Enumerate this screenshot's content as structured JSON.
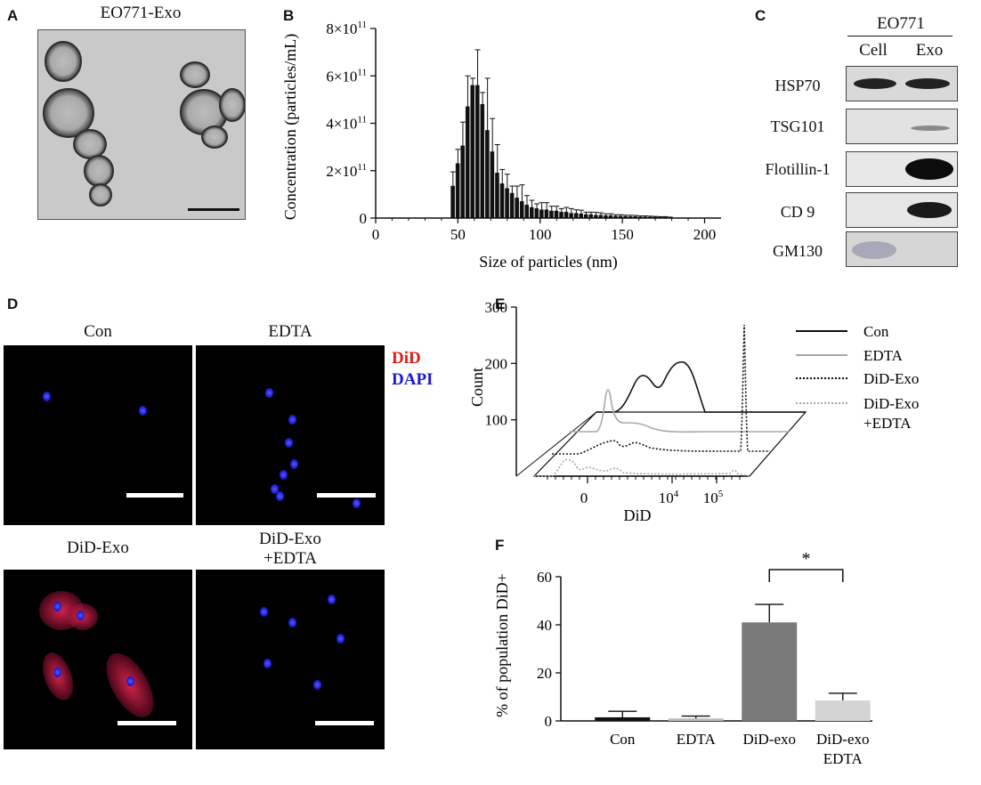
{
  "panels": {
    "a": {
      "label": "A",
      "title": "EO771-Exo"
    },
    "b": {
      "label": "B"
    },
    "c": {
      "label": "C",
      "header": "EO771",
      "col_cell": "Cell",
      "col_exo": "Exo",
      "rows": [
        "HSP70",
        "TSG101",
        "Flotillin-1",
        "CD 9",
        "GM130"
      ]
    },
    "d": {
      "label": "D",
      "con": "Con",
      "edta": "EDTA",
      "did_exo": "DiD-Exo",
      "did_exo_edta_1": "DiD-Exo",
      "did_exo_edta_2": "+EDTA",
      "legend_did": "DiD",
      "legend_dapi": "DAPI",
      "did_color": "#e0201b",
      "dapi_color": "#1a1ad6"
    },
    "e": {
      "label": "E"
    },
    "f": {
      "label": "F"
    }
  },
  "chart_data": [
    {
      "panel": "B",
      "type": "bar",
      "xlabel": "Size of particles (nm)",
      "ylabel": "Concentration (particles/mL)",
      "xlim": [
        0,
        210
      ],
      "ylim": [
        0,
        800000000000.0
      ],
      "xticks": [
        0,
        50,
        100,
        150,
        200
      ],
      "yticks": [
        {
          "value": 0,
          "label": "0"
        },
        {
          "value": 200000000000.0,
          "mant": "2",
          "exp": "11"
        },
        {
          "value": 400000000000.0,
          "mant": "4",
          "exp": "11"
        },
        {
          "value": 600000000000.0,
          "mant": "6",
          "exp": "11"
        },
        {
          "value": 800000000000.0,
          "mant": "8",
          "exp": "11"
        }
      ],
      "bin_width": 3,
      "x": [
        47,
        50,
        53,
        56,
        59,
        62,
        65,
        68,
        71,
        74,
        77,
        80,
        83,
        86,
        89,
        92,
        95,
        98,
        101,
        104,
        107,
        110,
        113,
        116,
        119,
        122,
        125,
        128,
        131,
        134,
        137,
        140,
        143,
        146,
        149,
        152,
        155,
        158,
        161,
        164,
        167,
        170,
        173,
        176,
        179
      ],
      "values": [
        135000000000.0,
        230000000000.0,
        305000000000.0,
        470000000000.0,
        560000000000.0,
        560000000000.0,
        480000000000.0,
        370000000000.0,
        280000000000.0,
        190000000000.0,
        145000000000.0,
        125000000000.0,
        105000000000.0,
        85000000000.0,
        70000000000.0,
        55000000000.0,
        45000000000.0,
        40000000000.0,
        35000000000.0,
        35000000000.0,
        30000000000.0,
        30000000000.0,
        25000000000.0,
        25000000000.0,
        20000000000.0,
        20000000000.0,
        18000000000.0,
        15000000000.0,
        15000000000.0,
        12000000000.0,
        12000000000.0,
        10000000000.0,
        10000000000.0,
        8000000000.0,
        8000000000.0,
        7000000000.0,
        6000000000.0,
        6000000000.0,
        5000000000.0,
        5000000000.0,
        4000000000.0,
        4000000000.0,
        3000000000.0,
        3000000000.0,
        2000000000.0
      ],
      "errors": [
        60000000000.0,
        60000000000.0,
        100000000000.0,
        130000000000.0,
        30000000000.0,
        150000000000.0,
        50000000000.0,
        220000000000.0,
        140000000000.0,
        120000000000.0,
        60000000000.0,
        60000000000.0,
        30000000000.0,
        50000000000.0,
        70000000000.0,
        40000000000.0,
        30000000000.0,
        20000000000.0,
        30000000000.0,
        30000000000.0,
        20000000000.0,
        20000000000.0,
        15000000000.0,
        20000000000.0,
        20000000000.0,
        15000000000.0,
        15000000000.0,
        10000000000.0,
        10000000000.0,
        12000000000.0,
        10000000000.0,
        8000000000.0,
        8000000000.0,
        6000000000.0,
        6000000000.0,
        5000000000.0,
        6000000000.0,
        5000000000.0,
        4000000000.0,
        4000000000.0,
        4000000000.0,
        3000000000.0,
        3000000000.0,
        3000000000.0,
        2000000000.0
      ]
    },
    {
      "panel": "E",
      "type": "line",
      "xlabel": "DiD",
      "ylabel": "Count",
      "xticks": [
        "0",
        "10",
        "10"
      ],
      "xtick_exps": [
        "",
        "4",
        "5"
      ],
      "yticks": [
        100,
        200,
        300
      ],
      "ylim": [
        0,
        300
      ],
      "legend": "right",
      "series": [
        {
          "name": "Con",
          "color": "#111111",
          "dash": ""
        },
        {
          "name": "EDTA",
          "color": "#a8a8a8",
          "dash": ""
        },
        {
          "name": "DiD-Exo",
          "color": "#111111",
          "dash": "2,2"
        },
        {
          "name": "DiD-Exo",
          "name_line2": "+EDTA",
          "color": "#a8a8a8",
          "dash": "2,2"
        }
      ]
    },
    {
      "panel": "F",
      "type": "bar",
      "ylabel": "% of population DiD+",
      "categories": [
        "Con",
        "EDTA",
        "DiD-exo",
        "DiD-exo"
      ],
      "categories_line2": [
        "",
        "",
        "",
        "EDTA"
      ],
      "values": [
        1.5,
        1.0,
        41,
        8.5
      ],
      "errors": [
        2.5,
        1.0,
        7.5,
        3.0
      ],
      "colors": [
        "#111111",
        "#b8b8b8",
        "#7a7a7a",
        "#d4d4d4"
      ],
      "ylim": [
        0,
        60
      ],
      "yticks": [
        0,
        20,
        40,
        60
      ],
      "significance": "*"
    }
  ]
}
